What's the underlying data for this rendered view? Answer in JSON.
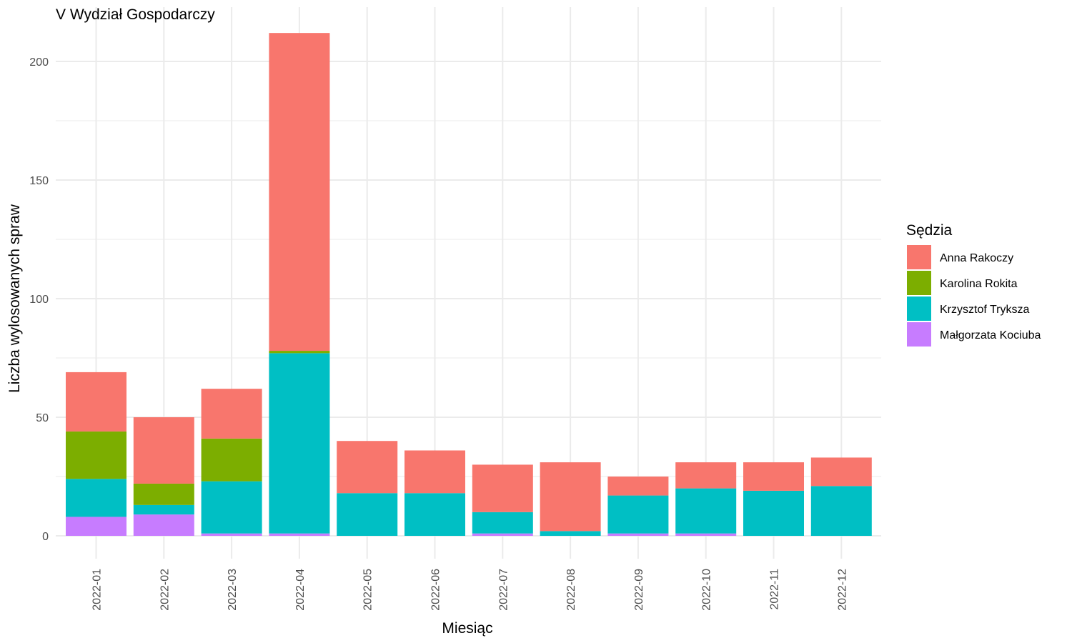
{
  "chart_data": {
    "type": "bar",
    "stacked": true,
    "title": "V Wydział Gospodarczy",
    "xlabel": "Miesiąc",
    "ylabel": "Liczba wylosowanych spraw",
    "ylim": [
      0,
      220
    ],
    "yticks": [
      0,
      50,
      100,
      150,
      200
    ],
    "grid": true,
    "legend_position": "right",
    "legend_title": "Sędzia",
    "categories": [
      "2022-01",
      "2022-02",
      "2022-03",
      "2022-04",
      "2022-05",
      "2022-06",
      "2022-07",
      "2022-08",
      "2022-09",
      "2022-10",
      "2022-11",
      "2022-12"
    ],
    "series": [
      {
        "name": "Małgorzata Kociuba",
        "color": "#C77CFF",
        "values": [
          8,
          9,
          1,
          1,
          0,
          0,
          1,
          0,
          1,
          1,
          0,
          0
        ]
      },
      {
        "name": "Krzysztof Tryksza",
        "color": "#00BFC4",
        "values": [
          16,
          4,
          22,
          76,
          18,
          18,
          9,
          2,
          16,
          19,
          19,
          21
        ]
      },
      {
        "name": "Karolina Rokita",
        "color": "#7CAE00",
        "values": [
          20,
          9,
          18,
          1,
          0,
          0,
          0,
          0,
          0,
          0,
          0,
          0
        ]
      },
      {
        "name": "Anna Rakoczy",
        "color": "#F8766D",
        "values": [
          25,
          28,
          21,
          134,
          22,
          18,
          20,
          29,
          8,
          11,
          12,
          12
        ]
      }
    ],
    "legend_order": [
      "Anna Rakoczy",
      "Karolina Rokita",
      "Krzysztof Tryksza",
      "Małgorzata Kociuba"
    ]
  }
}
